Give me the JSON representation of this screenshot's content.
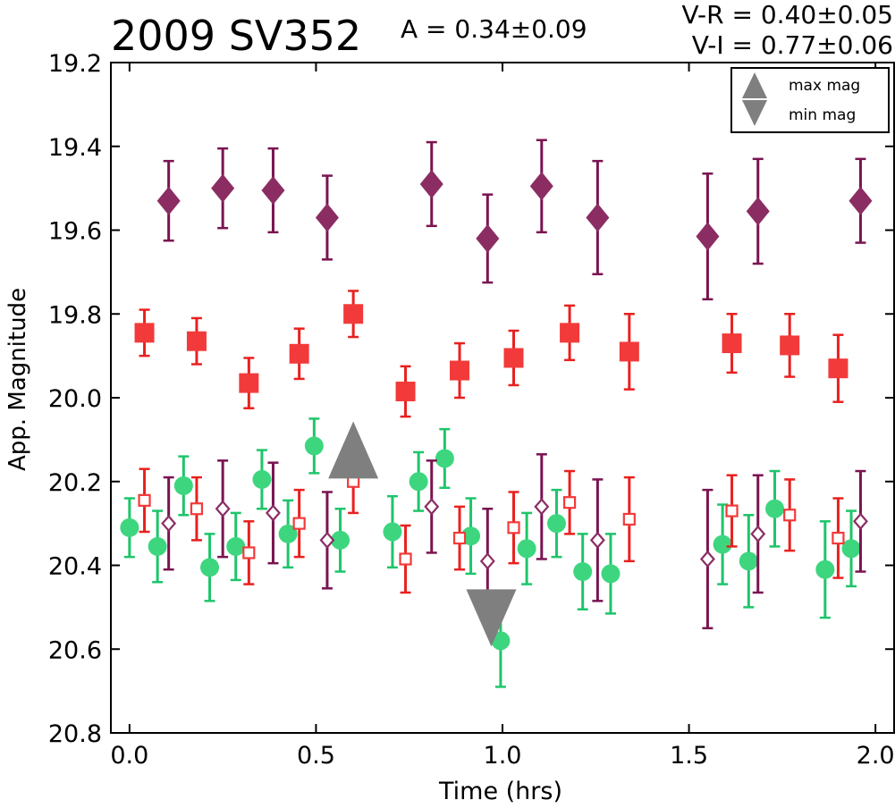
{
  "header": {
    "object_name": "2009 SV352",
    "amplitude": "A  = 0.34±0.09",
    "v_minus_r": "V-R = 0.40±0.05",
    "v_minus_i": "V-I  = 0.77±0.06"
  },
  "chart_data": {
    "type": "scatter",
    "xlabel": "Time (hrs)",
    "ylabel": "App. Magnitude",
    "xlim": [
      -0.05,
      2.05
    ],
    "ylim": [
      20.8,
      19.2
    ],
    "y_inverted": true,
    "xticks": [
      0.0,
      0.5,
      1.0,
      1.5,
      2.0
    ],
    "xtick_labels": [
      "0.0",
      "0.5",
      "1.0",
      "1.5",
      "2.0"
    ],
    "yticks": [
      19.2,
      19.4,
      19.6,
      19.8,
      20.0,
      20.2,
      20.4,
      20.6,
      20.8
    ],
    "ytick_labels": [
      "19.2",
      "19.4",
      "19.6",
      "19.8",
      "20.0",
      "20.2",
      "20.4",
      "20.6",
      "20.8"
    ],
    "grid": false,
    "legend": {
      "placement": "top-right",
      "entries": [
        {
          "label": "max mag",
          "marker": "triangle-up",
          "color": "#7f7f7f"
        },
        {
          "label": "min mag",
          "marker": "triangle-down",
          "color": "#7f7f7f"
        }
      ]
    },
    "series": [
      {
        "marker": "diamond-filled",
        "color": "#8b2d63",
        "errcolor": "#7a1450",
        "x": [
          0.105,
          0.25,
          0.385,
          0.53,
          0.81,
          0.96,
          1.105,
          1.255,
          1.55,
          1.685,
          1.96
        ],
        "y": [
          19.53,
          19.5,
          19.505,
          19.57,
          19.49,
          19.62,
          19.495,
          19.57,
          19.615,
          19.555,
          19.53
        ],
        "err": [
          0.095,
          0.095,
          0.1,
          0.1,
          0.1,
          0.105,
          0.11,
          0.135,
          0.15,
          0.125,
          0.1
        ]
      },
      {
        "marker": "square-filled",
        "color": "#f23a3a",
        "errcolor": "#e8211f",
        "x": [
          0.04,
          0.18,
          0.32,
          0.455,
          0.6,
          0.74,
          0.885,
          1.03,
          1.18,
          1.34,
          1.615,
          1.77,
          1.9
        ],
        "y": [
          19.845,
          19.865,
          19.965,
          19.895,
          19.8,
          19.985,
          19.935,
          19.905,
          19.845,
          19.89,
          19.87,
          19.875,
          19.93
        ],
        "err": [
          0.055,
          0.055,
          0.06,
          0.06,
          0.055,
          0.06,
          0.065,
          0.065,
          0.065,
          0.09,
          0.07,
          0.075,
          0.08
        ]
      },
      {
        "marker": "circle-filled",
        "color": "#3dd67f",
        "errcolor": "#1ec56a",
        "x": [
          0.0,
          0.075,
          0.145,
          0.215,
          0.285,
          0.355,
          0.425,
          0.495,
          0.565,
          0.705,
          0.775,
          0.845,
          0.915,
          0.995,
          1.065,
          1.145,
          1.215,
          1.29,
          1.59,
          1.66,
          1.73,
          1.865,
          1.935
        ],
        "y": [
          20.31,
          20.355,
          20.21,
          20.405,
          20.355,
          20.195,
          20.325,
          20.115,
          20.34,
          20.32,
          20.2,
          20.145,
          20.33,
          20.58,
          20.36,
          20.3,
          20.415,
          20.42,
          20.35,
          20.39,
          20.265,
          20.41,
          20.36
        ],
        "err": [
          0.07,
          0.085,
          0.07,
          0.08,
          0.08,
          0.07,
          0.08,
          0.065,
          0.075,
          0.085,
          0.07,
          0.07,
          0.09,
          0.11,
          0.085,
          0.08,
          0.09,
          0.095,
          0.095,
          0.11,
          0.09,
          0.115,
          0.09
        ]
      },
      {
        "marker": "square-open",
        "color": "#f23a3a",
        "errcolor": "#e8211f",
        "x": [
          0.04,
          0.18,
          0.32,
          0.455,
          0.6,
          0.74,
          0.885,
          1.03,
          1.18,
          1.34,
          1.615,
          1.77,
          1.9
        ],
        "y": [
          20.245,
          20.265,
          20.37,
          20.3,
          20.2,
          20.385,
          20.335,
          20.31,
          20.25,
          20.29,
          20.27,
          20.28,
          20.335
        ],
        "err": [
          0.075,
          0.075,
          0.075,
          0.08,
          0.075,
          0.08,
          0.075,
          0.085,
          0.075,
          0.1,
          0.085,
          0.085,
          0.095
        ]
      },
      {
        "marker": "diamond-open",
        "color": "#8b2d63",
        "errcolor": "#7a1450",
        "x": [
          0.105,
          0.25,
          0.385,
          0.53,
          0.81,
          0.96,
          1.105,
          1.255,
          1.55,
          1.685,
          1.96
        ],
        "y": [
          20.3,
          20.265,
          20.275,
          20.34,
          20.26,
          20.39,
          20.26,
          20.34,
          20.385,
          20.325,
          20.295
        ],
        "err": [
          0.11,
          0.115,
          0.12,
          0.115,
          0.11,
          0.125,
          0.125,
          0.145,
          0.165,
          0.14,
          0.12
        ]
      },
      {
        "marker": "triangle-up-big",
        "color": "#7f7f7f",
        "x": [
          0.6
        ],
        "y": [
          20.15
        ],
        "err": [
          0
        ]
      },
      {
        "marker": "triangle-down-big",
        "color": "#7f7f7f",
        "x": [
          0.97
        ],
        "y": [
          20.5
        ],
        "err": [
          0
        ]
      }
    ]
  }
}
